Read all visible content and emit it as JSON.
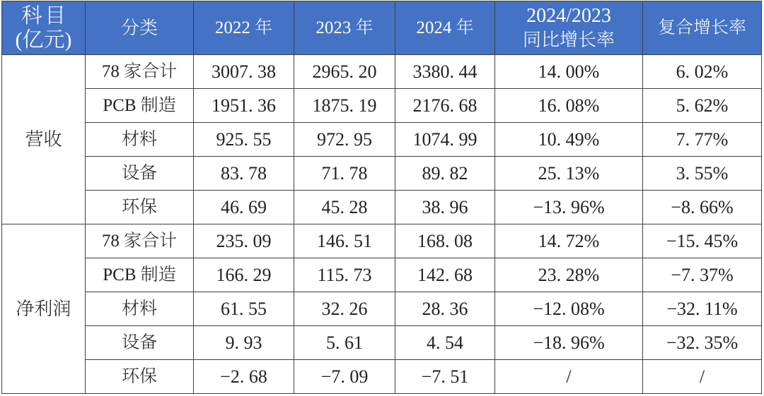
{
  "colors": {
    "header_background": "#4472c4",
    "header_text": "#ffffff",
    "body_background": "#ffffff",
    "body_text": "#222222",
    "border": "#3b3b3b"
  },
  "header": {
    "subject": {
      "line1": "科目",
      "line2": "(亿元)"
    },
    "category": "分类",
    "year_2022": "2022 年",
    "year_2023": "2023 年",
    "year_2024": "2024 年",
    "yoy": {
      "line1": "2024/2023",
      "line2": "同比增长率"
    },
    "cagr": "复合增长率"
  },
  "groups": [
    {
      "label": "营收",
      "rows": [
        {
          "category": "78 家合计",
          "cells": [
            "3007. 38",
            "2965. 20",
            "3380. 44",
            "14. 00%",
            "6. 02%"
          ]
        },
        {
          "category": "PCB 制造",
          "cells": [
            "1951. 36",
            "1875. 19",
            "2176. 68",
            "16. 08%",
            "5. 62%"
          ]
        },
        {
          "category": "材料",
          "cells": [
            "925. 55",
            "972. 95",
            "1074. 99",
            "10. 49%",
            "7. 77%"
          ]
        },
        {
          "category": "设备",
          "cells": [
            "83. 78",
            "71. 78",
            "89. 82",
            "25. 13%",
            "3. 55%"
          ]
        },
        {
          "category": "环保",
          "cells": [
            "46. 69",
            "45. 28",
            "38. 96",
            "−13. 96%",
            "−8. 66%"
          ]
        }
      ]
    },
    {
      "label": "净利润",
      "rows": [
        {
          "category": "78 家合计",
          "cells": [
            "235. 09",
            "146. 51",
            "168. 08",
            "14. 72%",
            "−15. 45%"
          ]
        },
        {
          "category": "PCB 制造",
          "cells": [
            "166. 29",
            "115. 73",
            "142. 68",
            "23. 28%",
            "−7. 37%"
          ]
        },
        {
          "category": "材料",
          "cells": [
            "61. 55",
            "32. 26",
            "28. 36",
            "−12. 08%",
            "−32. 11%"
          ]
        },
        {
          "category": "设备",
          "cells": [
            "9. 93",
            "5. 61",
            "4. 54",
            "−18. 96%",
            "−32. 35%"
          ]
        },
        {
          "category": "环保",
          "cells": [
            "−2. 68",
            "−7. 09",
            "−7. 51",
            "/",
            "/"
          ]
        }
      ]
    }
  ],
  "chart_data": {
    "type": "table",
    "title": "",
    "columns": [
      "科目(亿元)",
      "分类",
      "2022年",
      "2023年",
      "2024年",
      "2024/2023同比增长率",
      "复合增长率"
    ],
    "rows": [
      [
        "营收",
        "78家合计",
        "3007.38",
        "2965.20",
        "3380.44",
        "14.00%",
        "6.02%"
      ],
      [
        "营收",
        "PCB制造",
        "1951.36",
        "1875.19",
        "2176.68",
        "16.08%",
        "5.62%"
      ],
      [
        "营收",
        "材料",
        "925.55",
        "972.95",
        "1074.99",
        "10.49%",
        "7.77%"
      ],
      [
        "营收",
        "设备",
        "83.78",
        "71.78",
        "89.82",
        "25.13%",
        "3.55%"
      ],
      [
        "营收",
        "环保",
        "46.69",
        "45.28",
        "38.96",
        "-13.96%",
        "-8.66%"
      ],
      [
        "净利润",
        "78家合计",
        "235.09",
        "146.51",
        "168.08",
        "14.72%",
        "-15.45%"
      ],
      [
        "净利润",
        "PCB制造",
        "166.29",
        "115.73",
        "142.68",
        "23.28%",
        "-7.37%"
      ],
      [
        "净利润",
        "材料",
        "61.55",
        "32.26",
        "28.36",
        "-12.08%",
        "-32.11%"
      ],
      [
        "净利润",
        "设备",
        "9.93",
        "5.61",
        "4.54",
        "-18.96%",
        "-32.35%"
      ],
      [
        "净利润",
        "环保",
        "-2.68",
        "-7.09",
        "-7.51",
        "/",
        "/"
      ]
    ]
  }
}
